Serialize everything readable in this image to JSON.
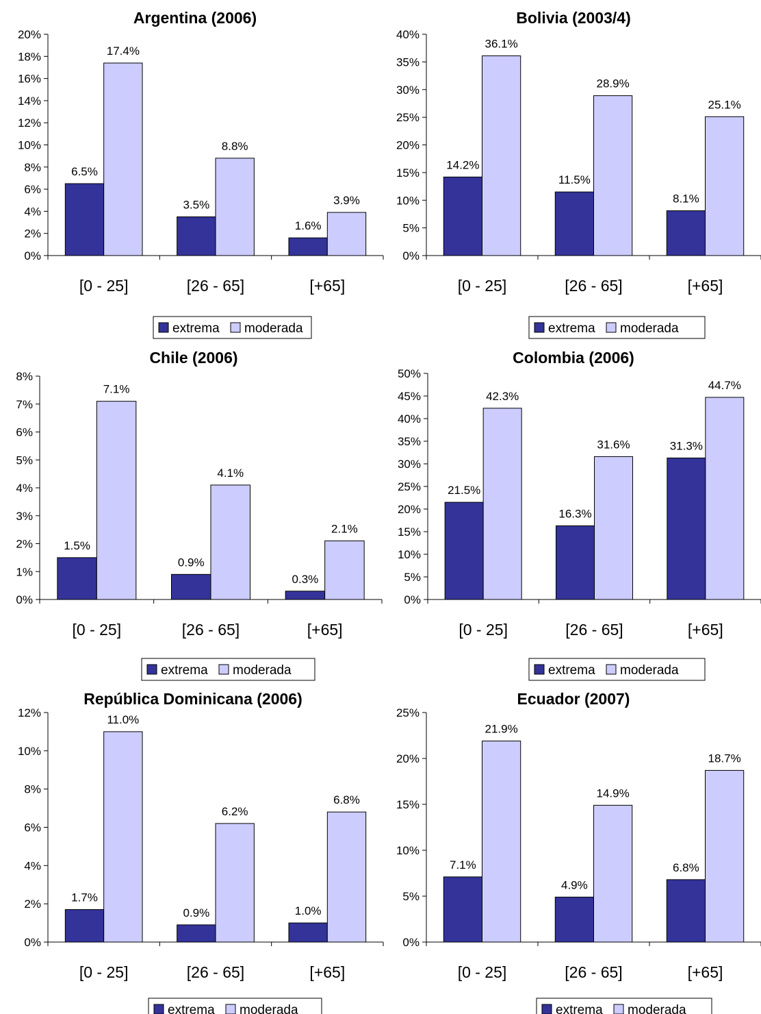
{
  "chart_data": [
    {
      "type": "bar",
      "title": "Argentina (2006)",
      "categories": [
        "[0 - 25]",
        "[26 - 65]",
        "[+65]"
      ],
      "series": [
        {
          "name": "extrema",
          "values": [
            6.5,
            3.5,
            1.6
          ]
        },
        {
          "name": "moderada",
          "values": [
            17.4,
            8.8,
            3.9
          ]
        }
      ],
      "data_labels": [
        [
          "6.5%",
          "3.5%",
          "1.6%"
        ],
        [
          "17.4%",
          "8.8%",
          "3.9%"
        ]
      ],
      "ylim": [
        0,
        20
      ],
      "yticks": [
        0,
        2,
        4,
        6,
        8,
        10,
        12,
        14,
        16,
        18,
        20
      ],
      "ytick_labels": [
        "0%",
        "2%",
        "4%",
        "6%",
        "8%",
        "10%",
        "12%",
        "14%",
        "16%",
        "18%",
        "20%"
      ],
      "legend_position": "bottom",
      "grid": false
    },
    {
      "type": "bar",
      "title": "Bolivia (2003/4)",
      "categories": [
        "[0 - 25]",
        "[26 - 65]",
        "[+65]"
      ],
      "series": [
        {
          "name": "extrema",
          "values": [
            14.2,
            11.5,
            8.1
          ]
        },
        {
          "name": "moderada",
          "values": [
            36.1,
            28.9,
            25.1
          ]
        }
      ],
      "data_labels": [
        [
          "14.2%",
          "11.5%",
          "8.1%"
        ],
        [
          "36.1%",
          "28.9%",
          "25.1%"
        ]
      ],
      "ylim": [
        0,
        40
      ],
      "yticks": [
        0,
        5,
        10,
        15,
        20,
        25,
        30,
        35,
        40
      ],
      "ytick_labels": [
        "0%",
        "5%",
        "10%",
        "15%",
        "20%",
        "25%",
        "30%",
        "35%",
        "40%"
      ],
      "legend_position": "bottom",
      "grid": false
    },
    {
      "type": "bar",
      "title": "Chile (2006)",
      "categories": [
        "[0 - 25]",
        "[26 - 65]",
        "[+65]"
      ],
      "series": [
        {
          "name": "extrema",
          "values": [
            1.5,
            0.9,
            0.3
          ]
        },
        {
          "name": "moderada",
          "values": [
            7.1,
            4.1,
            2.1
          ]
        }
      ],
      "data_labels": [
        [
          "1.5%",
          "0.9%",
          "0.3%"
        ],
        [
          "7.1%",
          "4.1%",
          "2.1%"
        ]
      ],
      "ylim": [
        0,
        8
      ],
      "yticks": [
        0,
        1,
        2,
        3,
        4,
        5,
        6,
        7,
        8
      ],
      "ytick_labels": [
        "0%",
        "1%",
        "2%",
        "3%",
        "4%",
        "5%",
        "6%",
        "7%",
        "8%"
      ],
      "legend_position": "bottom",
      "grid": false
    },
    {
      "type": "bar",
      "title": "Colombia (2006)",
      "categories": [
        "[0 - 25]",
        "[26 - 65]",
        "[+65]"
      ],
      "series": [
        {
          "name": "extrema",
          "values": [
            21.5,
            16.3,
            31.3
          ]
        },
        {
          "name": "moderada",
          "values": [
            42.3,
            31.6,
            44.7
          ]
        }
      ],
      "data_labels": [
        [
          "21.5%",
          "16.3%",
          "31.3%"
        ],
        [
          "42.3%",
          "31.6%",
          "44.7%"
        ]
      ],
      "ylim": [
        0,
        50
      ],
      "yticks": [
        0,
        5,
        10,
        15,
        20,
        25,
        30,
        35,
        40,
        45,
        50
      ],
      "ytick_labels": [
        "0%",
        "5%",
        "10%",
        "15%",
        "20%",
        "25%",
        "30%",
        "35%",
        "40%",
        "45%",
        "50%"
      ],
      "legend_position": "bottom",
      "grid": false
    },
    {
      "type": "bar",
      "title": "República Dominicana (2006)",
      "categories": [
        "[0 - 25]",
        "[26 - 65]",
        "[+65]"
      ],
      "series": [
        {
          "name": "extrema",
          "values": [
            1.7,
            0.9,
            1.0
          ]
        },
        {
          "name": "moderada",
          "values": [
            11.0,
            6.2,
            6.8
          ]
        }
      ],
      "data_labels": [
        [
          "1.7%",
          "0.9%",
          "1.0%"
        ],
        [
          "11.0%",
          "6.2%",
          "6.8%"
        ]
      ],
      "ylim": [
        0,
        12
      ],
      "yticks": [
        0,
        2,
        4,
        6,
        8,
        10,
        12
      ],
      "ytick_labels": [
        "0%",
        "2%",
        "4%",
        "6%",
        "8%",
        "10%",
        "12%"
      ],
      "legend_position": "bottom",
      "grid": false
    },
    {
      "type": "bar",
      "title": "Ecuador (2007)",
      "categories": [
        "[0 - 25]",
        "[26 - 65]",
        "[+65]"
      ],
      "series": [
        {
          "name": "extrema",
          "values": [
            7.1,
            4.9,
            6.8
          ]
        },
        {
          "name": "moderada",
          "values": [
            21.9,
            14.9,
            18.7
          ]
        }
      ],
      "data_labels": [
        [
          "7.1%",
          "4.9%",
          "6.8%"
        ],
        [
          "21.9%",
          "14.9%",
          "18.7%"
        ]
      ],
      "ylim": [
        0,
        25
      ],
      "yticks": [
        0,
        5,
        10,
        15,
        20,
        25
      ],
      "ytick_labels": [
        "0%",
        "5%",
        "10%",
        "15%",
        "20%",
        "25%"
      ],
      "legend_position": "bottom",
      "grid": false
    }
  ],
  "colors": {
    "extrema": "#333399",
    "moderada": "#ccccff",
    "bar_stroke": "#000000",
    "axis": "#000000"
  }
}
